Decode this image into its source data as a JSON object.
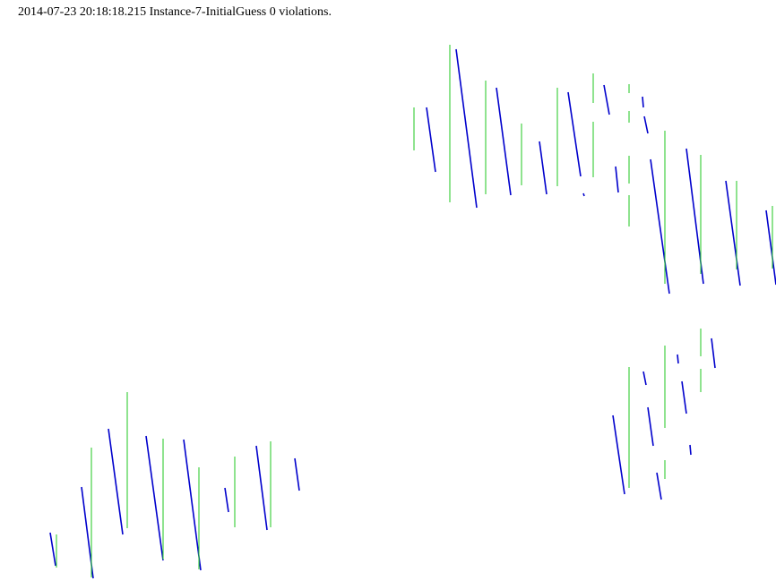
{
  "header": {
    "status_text": "2014-07-23 20:18:18.215 Instance-7-InitialGuess 0 violations."
  },
  "colors": {
    "blue": "#0000cc",
    "green": "#33cc33",
    "background": "#ffffff"
  }
}
